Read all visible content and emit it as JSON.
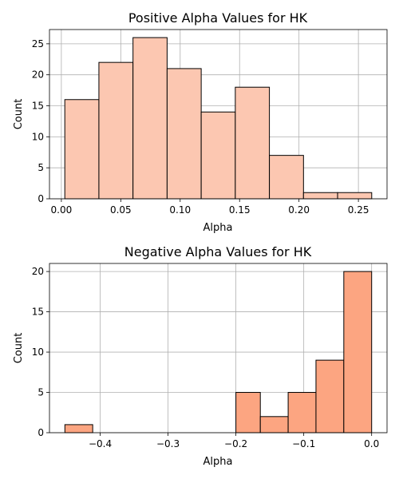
{
  "chart_data": [
    {
      "type": "bar",
      "title": "Positive Alpha Values for HK",
      "xlabel": "Alpha",
      "ylabel": "Count",
      "bin_edges": [
        0.0029,
        0.0316,
        0.0603,
        0.089,
        0.1177,
        0.1464,
        0.1751,
        0.2038,
        0.2325,
        0.2612
      ],
      "values": [
        16,
        22,
        26,
        21,
        14,
        18,
        7,
        1,
        1
      ],
      "xlim": [
        -0.01,
        0.2741
      ],
      "ylim": [
        0,
        27.3
      ],
      "xticks": [
        0.0,
        0.05,
        0.1,
        0.15,
        0.2,
        0.25
      ],
      "xtick_labels": [
        "0.00",
        "0.05",
        "0.10",
        "0.15",
        "0.20",
        "0.25"
      ],
      "yticks": [
        0,
        5,
        10,
        15,
        20,
        25
      ],
      "ytick_labels": [
        "0",
        "5",
        "10",
        "15",
        "20",
        "25"
      ],
      "grid": true,
      "bar_color": "#fcc7b1",
      "edge_color": "#000000"
    },
    {
      "type": "bar",
      "title": "Negative Alpha Values for HK",
      "xlabel": "Alpha",
      "ylabel": "Count",
      "bin_edges": [
        -0.452,
        -0.411,
        -0.37,
        -0.329,
        -0.288,
        -0.247,
        -0.2,
        -0.164,
        -0.123,
        -0.082,
        -0.041,
        0.0
      ],
      "values": [
        1,
        0,
        0,
        0,
        0,
        0,
        5,
        2,
        5,
        9,
        20
      ],
      "xlim": [
        -0.4747,
        0.0227
      ],
      "ylim": [
        0,
        21
      ],
      "xticks": [
        -0.4,
        -0.3,
        -0.2,
        -0.1,
        0.0
      ],
      "xtick_labels": [
        "−0.4",
        "−0.3",
        "−0.2",
        "−0.1",
        "0.0"
      ],
      "yticks": [
        0,
        5,
        10,
        15,
        20
      ],
      "ytick_labels": [
        "0",
        "5",
        "10",
        "15",
        "20"
      ],
      "grid": true,
      "bar_color": "#fca581",
      "edge_color": "#000000"
    }
  ]
}
